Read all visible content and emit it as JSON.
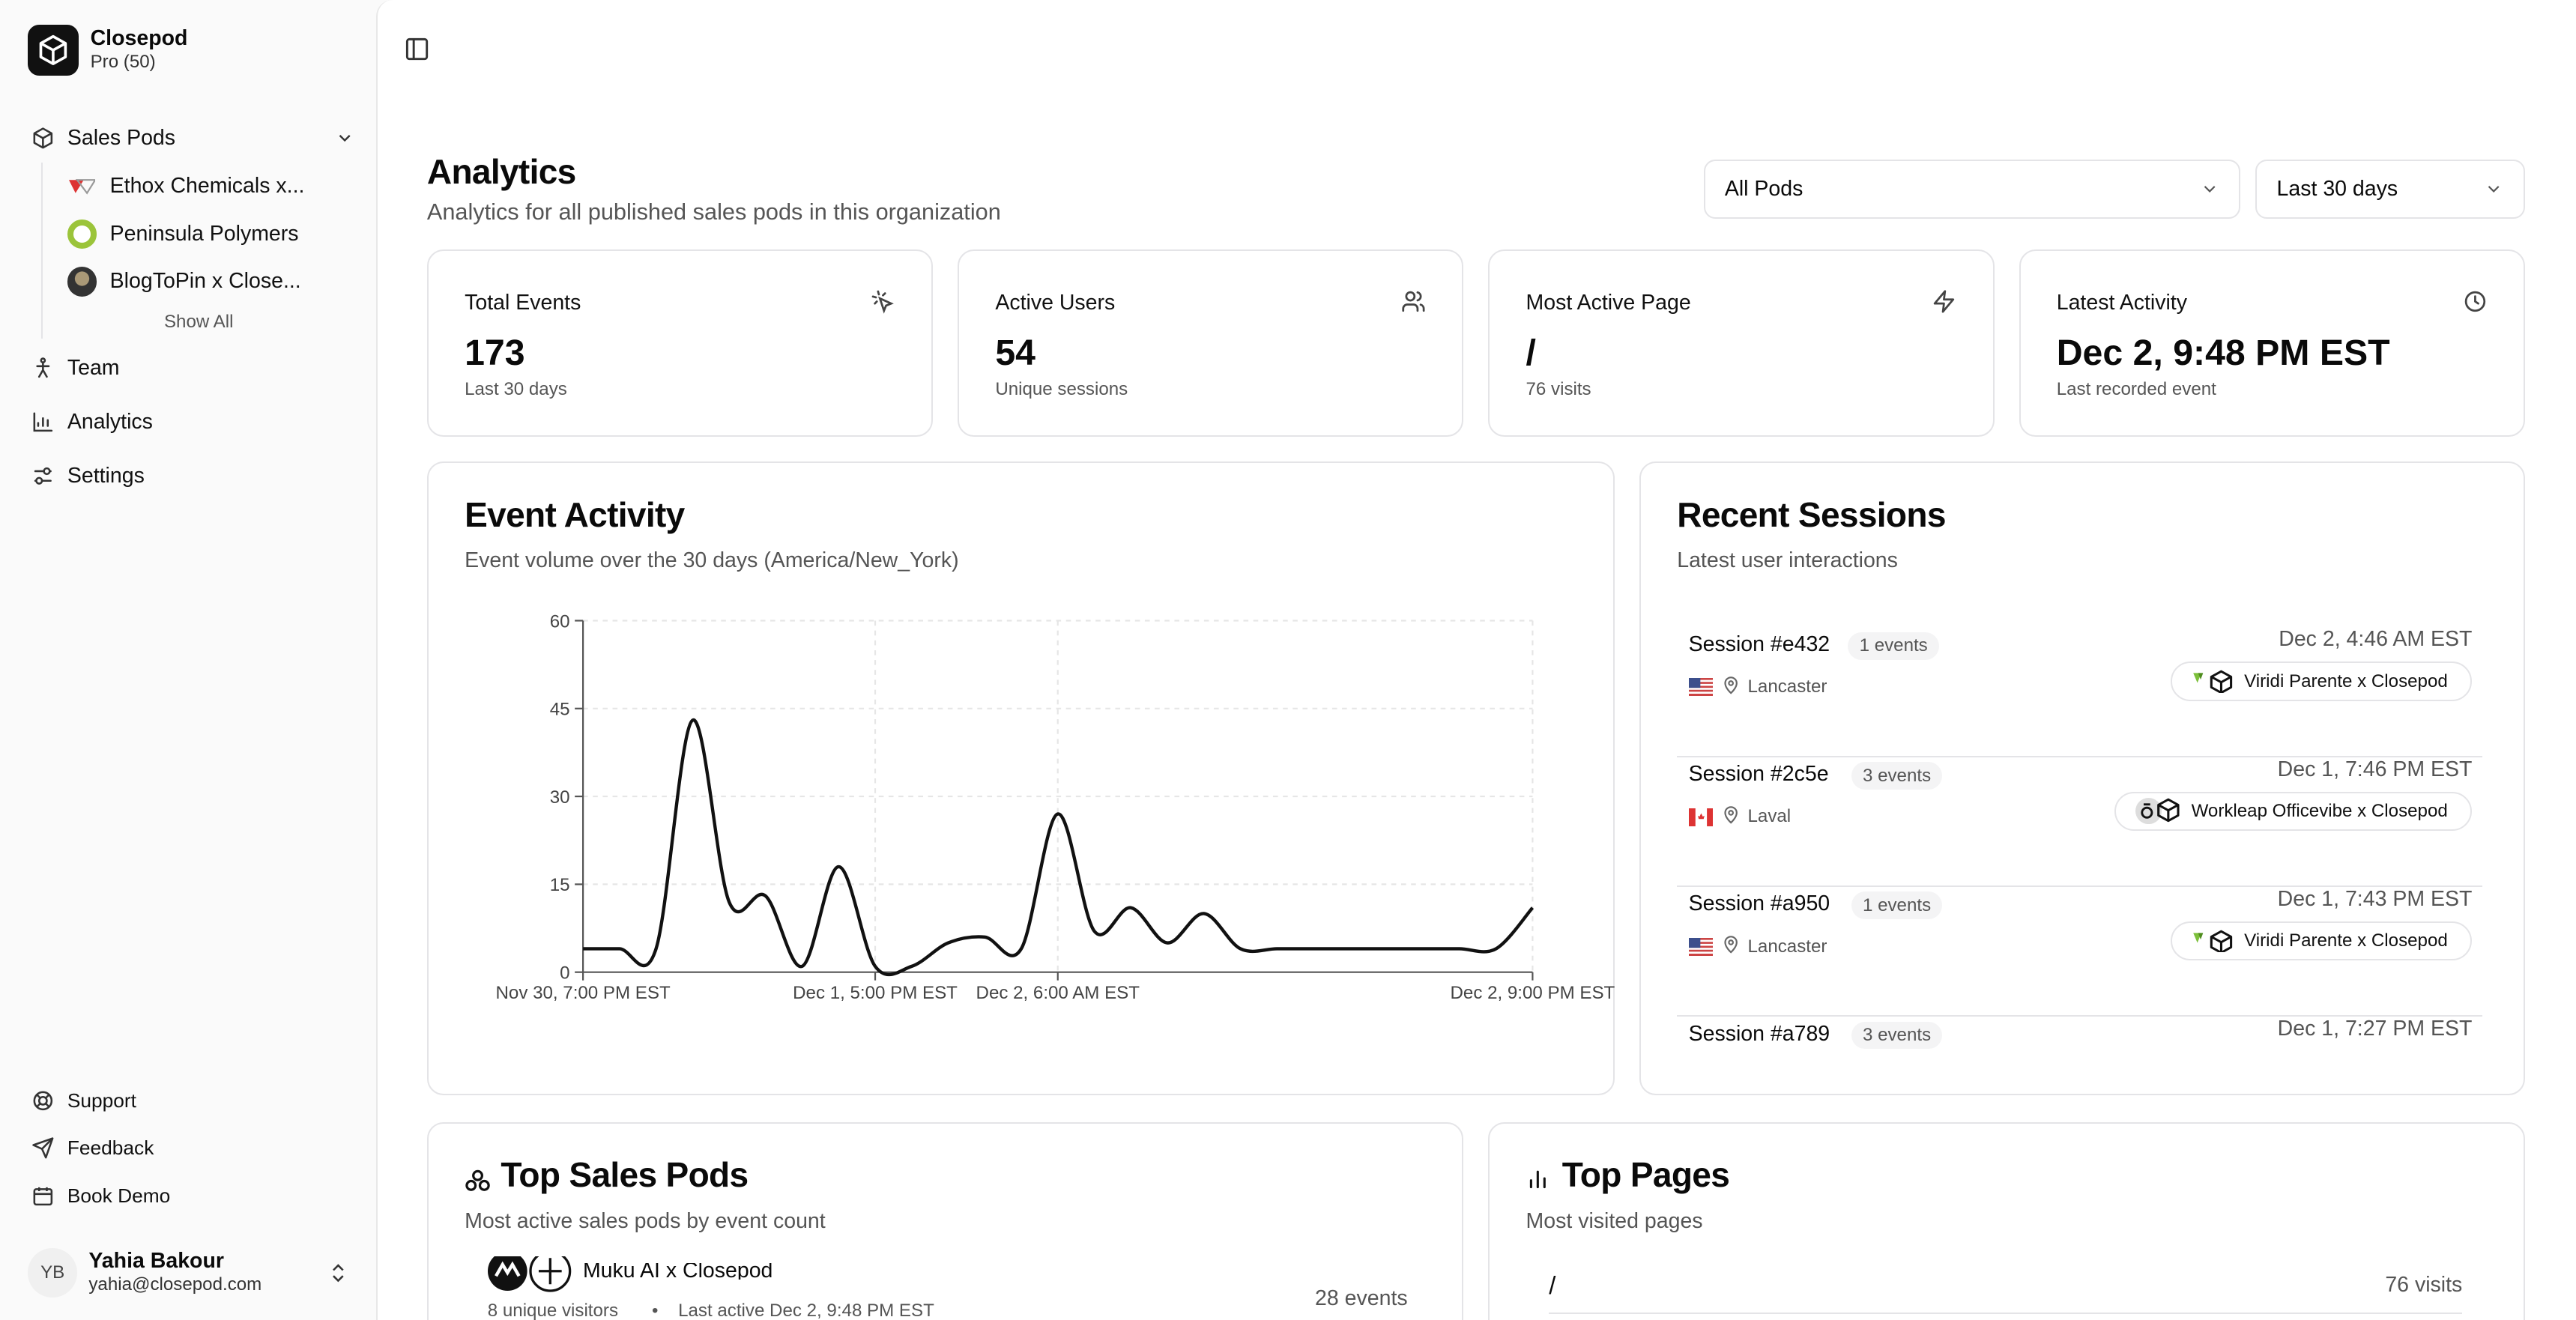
{
  "brand": {
    "name": "Closepod",
    "plan": "Pro (50)"
  },
  "sidebar": {
    "sales_pods_label": "Sales Pods",
    "pods": [
      {
        "label": "Ethox Chemicals x..."
      },
      {
        "label": "Peninsula Polymers"
      },
      {
        "label": "BlogToPin x Close..."
      }
    ],
    "show_all": "Show All",
    "team": "Team",
    "analytics": "Analytics",
    "settings": "Settings",
    "support": "Support",
    "feedback": "Feedback",
    "book_demo": "Book Demo"
  },
  "user": {
    "initials": "YB",
    "name": "Yahia Bakour",
    "email": "yahia@closepod.com"
  },
  "header": {
    "title": "Analytics",
    "subtitle": "Analytics for all published sales pods in this organization",
    "pod_filter": "All Pods",
    "range_filter": "Last 30 days"
  },
  "stats": [
    {
      "label": "Total Events",
      "value": "173",
      "sub": "Last 30 days",
      "icon": "cursor-click-icon"
    },
    {
      "label": "Active Users",
      "value": "54",
      "sub": "Unique sessions",
      "icon": "users-icon"
    },
    {
      "label": "Most Active Page",
      "value": "/",
      "sub": "76 visits",
      "icon": "zap-icon"
    },
    {
      "label": "Latest Activity",
      "value": "Dec 2, 9:48 PM EST",
      "sub": "Last recorded event",
      "icon": "clock-icon"
    }
  ],
  "event_activity": {
    "title": "Event Activity",
    "subtitle": "Event volume over the 30 days (America/New_York)"
  },
  "chart_data": {
    "type": "line",
    "title": "Event Activity",
    "xlabel": "",
    "ylabel": "",
    "ylim": [
      0,
      60
    ],
    "yticks": [
      "0",
      "15",
      "30",
      "45",
      "60"
    ],
    "xtick_labels": [
      "Nov 30, 7:00 PM EST",
      "Dec 1, 5:00 PM EST",
      "Dec 2, 6:00 AM EST",
      "Dec 2, 9:00 PM EST"
    ],
    "xtick_positions": [
      0,
      8,
      13,
      26
    ],
    "grid": true,
    "x": [
      0,
      1,
      2,
      3,
      4,
      5,
      6,
      7,
      8,
      9,
      10,
      11,
      12,
      13,
      14,
      15,
      16,
      17,
      18,
      19,
      20,
      21,
      22,
      23,
      24,
      25,
      26
    ],
    "values": [
      4,
      4,
      4,
      43,
      12,
      13,
      1,
      18,
      1,
      1,
      5,
      6,
      4,
      27,
      7,
      11,
      5,
      10,
      4,
      4,
      4,
      4,
      4,
      4,
      4,
      4,
      11
    ]
  },
  "recent_sessions": {
    "title": "Recent Sessions",
    "subtitle": "Latest user interactions",
    "items": [
      {
        "name": "Session #e432",
        "count": "1 events",
        "time": "Dec 2, 4:46 AM EST",
        "flag": "us",
        "location": "Lancaster",
        "pod": "Viridi Parente x Closepod"
      },
      {
        "name": "Session #2c5e",
        "count": "3 events",
        "time": "Dec 1, 7:46 PM EST",
        "flag": "ca",
        "location": "Laval",
        "pod": "Workleap Officevibe x Closepod"
      },
      {
        "name": "Session #a950",
        "count": "1 events",
        "time": "Dec 1, 7:43 PM EST",
        "flag": "us",
        "location": "Lancaster",
        "pod": "Viridi Parente x Closepod"
      },
      {
        "name": "Session #a789",
        "count": "3 events",
        "time": "Dec 1, 7:27 PM EST",
        "flag": "",
        "location": "",
        "pod": ""
      }
    ]
  },
  "top_pods": {
    "title": "Top Sales Pods",
    "subtitle": "Most active sales pods by event count",
    "items": [
      {
        "name": "Muku AI x Closepod",
        "meta": "8 unique visitors",
        "last_active": "Last active Dec 2, 9:48 PM EST",
        "events": "28 events"
      }
    ]
  },
  "top_pages": {
    "title": "Top Pages",
    "subtitle": "Most visited pages",
    "items": [
      {
        "path": "/",
        "visits": "76 visits"
      }
    ]
  }
}
